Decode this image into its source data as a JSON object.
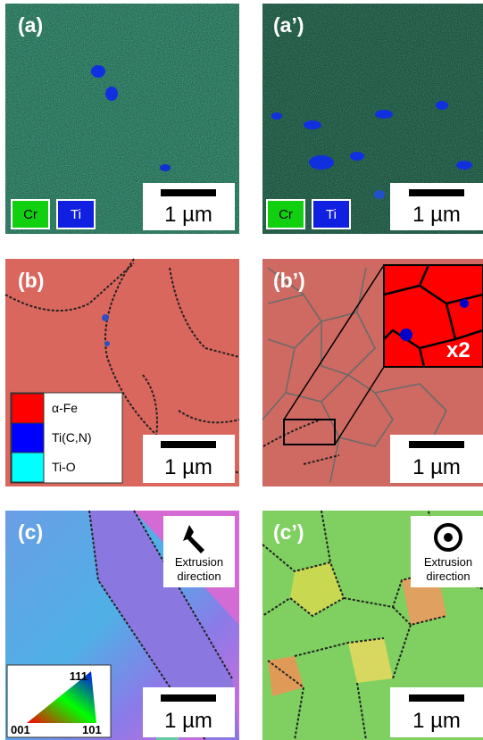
{
  "panels": [
    {
      "label": "(a)",
      "scale_bar": "1 µm",
      "legend": [
        "Cr",
        "Ti"
      ]
    },
    {
      "label": "(a’)",
      "scale_bar": "1 µm",
      "legend": [
        "Cr",
        "Ti"
      ]
    },
    {
      "label": "(b)",
      "scale_bar": "1 µm",
      "legend": [
        "α-Fe",
        "Ti(C,N)",
        "Ti-O"
      ]
    },
    {
      "label": "(b’)",
      "scale_bar": "1 µm",
      "inset_label": "x2"
    },
    {
      "label": "(c)",
      "scale_bar": "1 µm",
      "direction": [
        "Extrusion",
        "direction"
      ],
      "ipf": [
        "111",
        "001",
        "101"
      ]
    },
    {
      "label": "(c’)",
      "scale_bar": "1 µm",
      "direction": [
        "Extrusion",
        "direction"
      ]
    }
  ]
}
